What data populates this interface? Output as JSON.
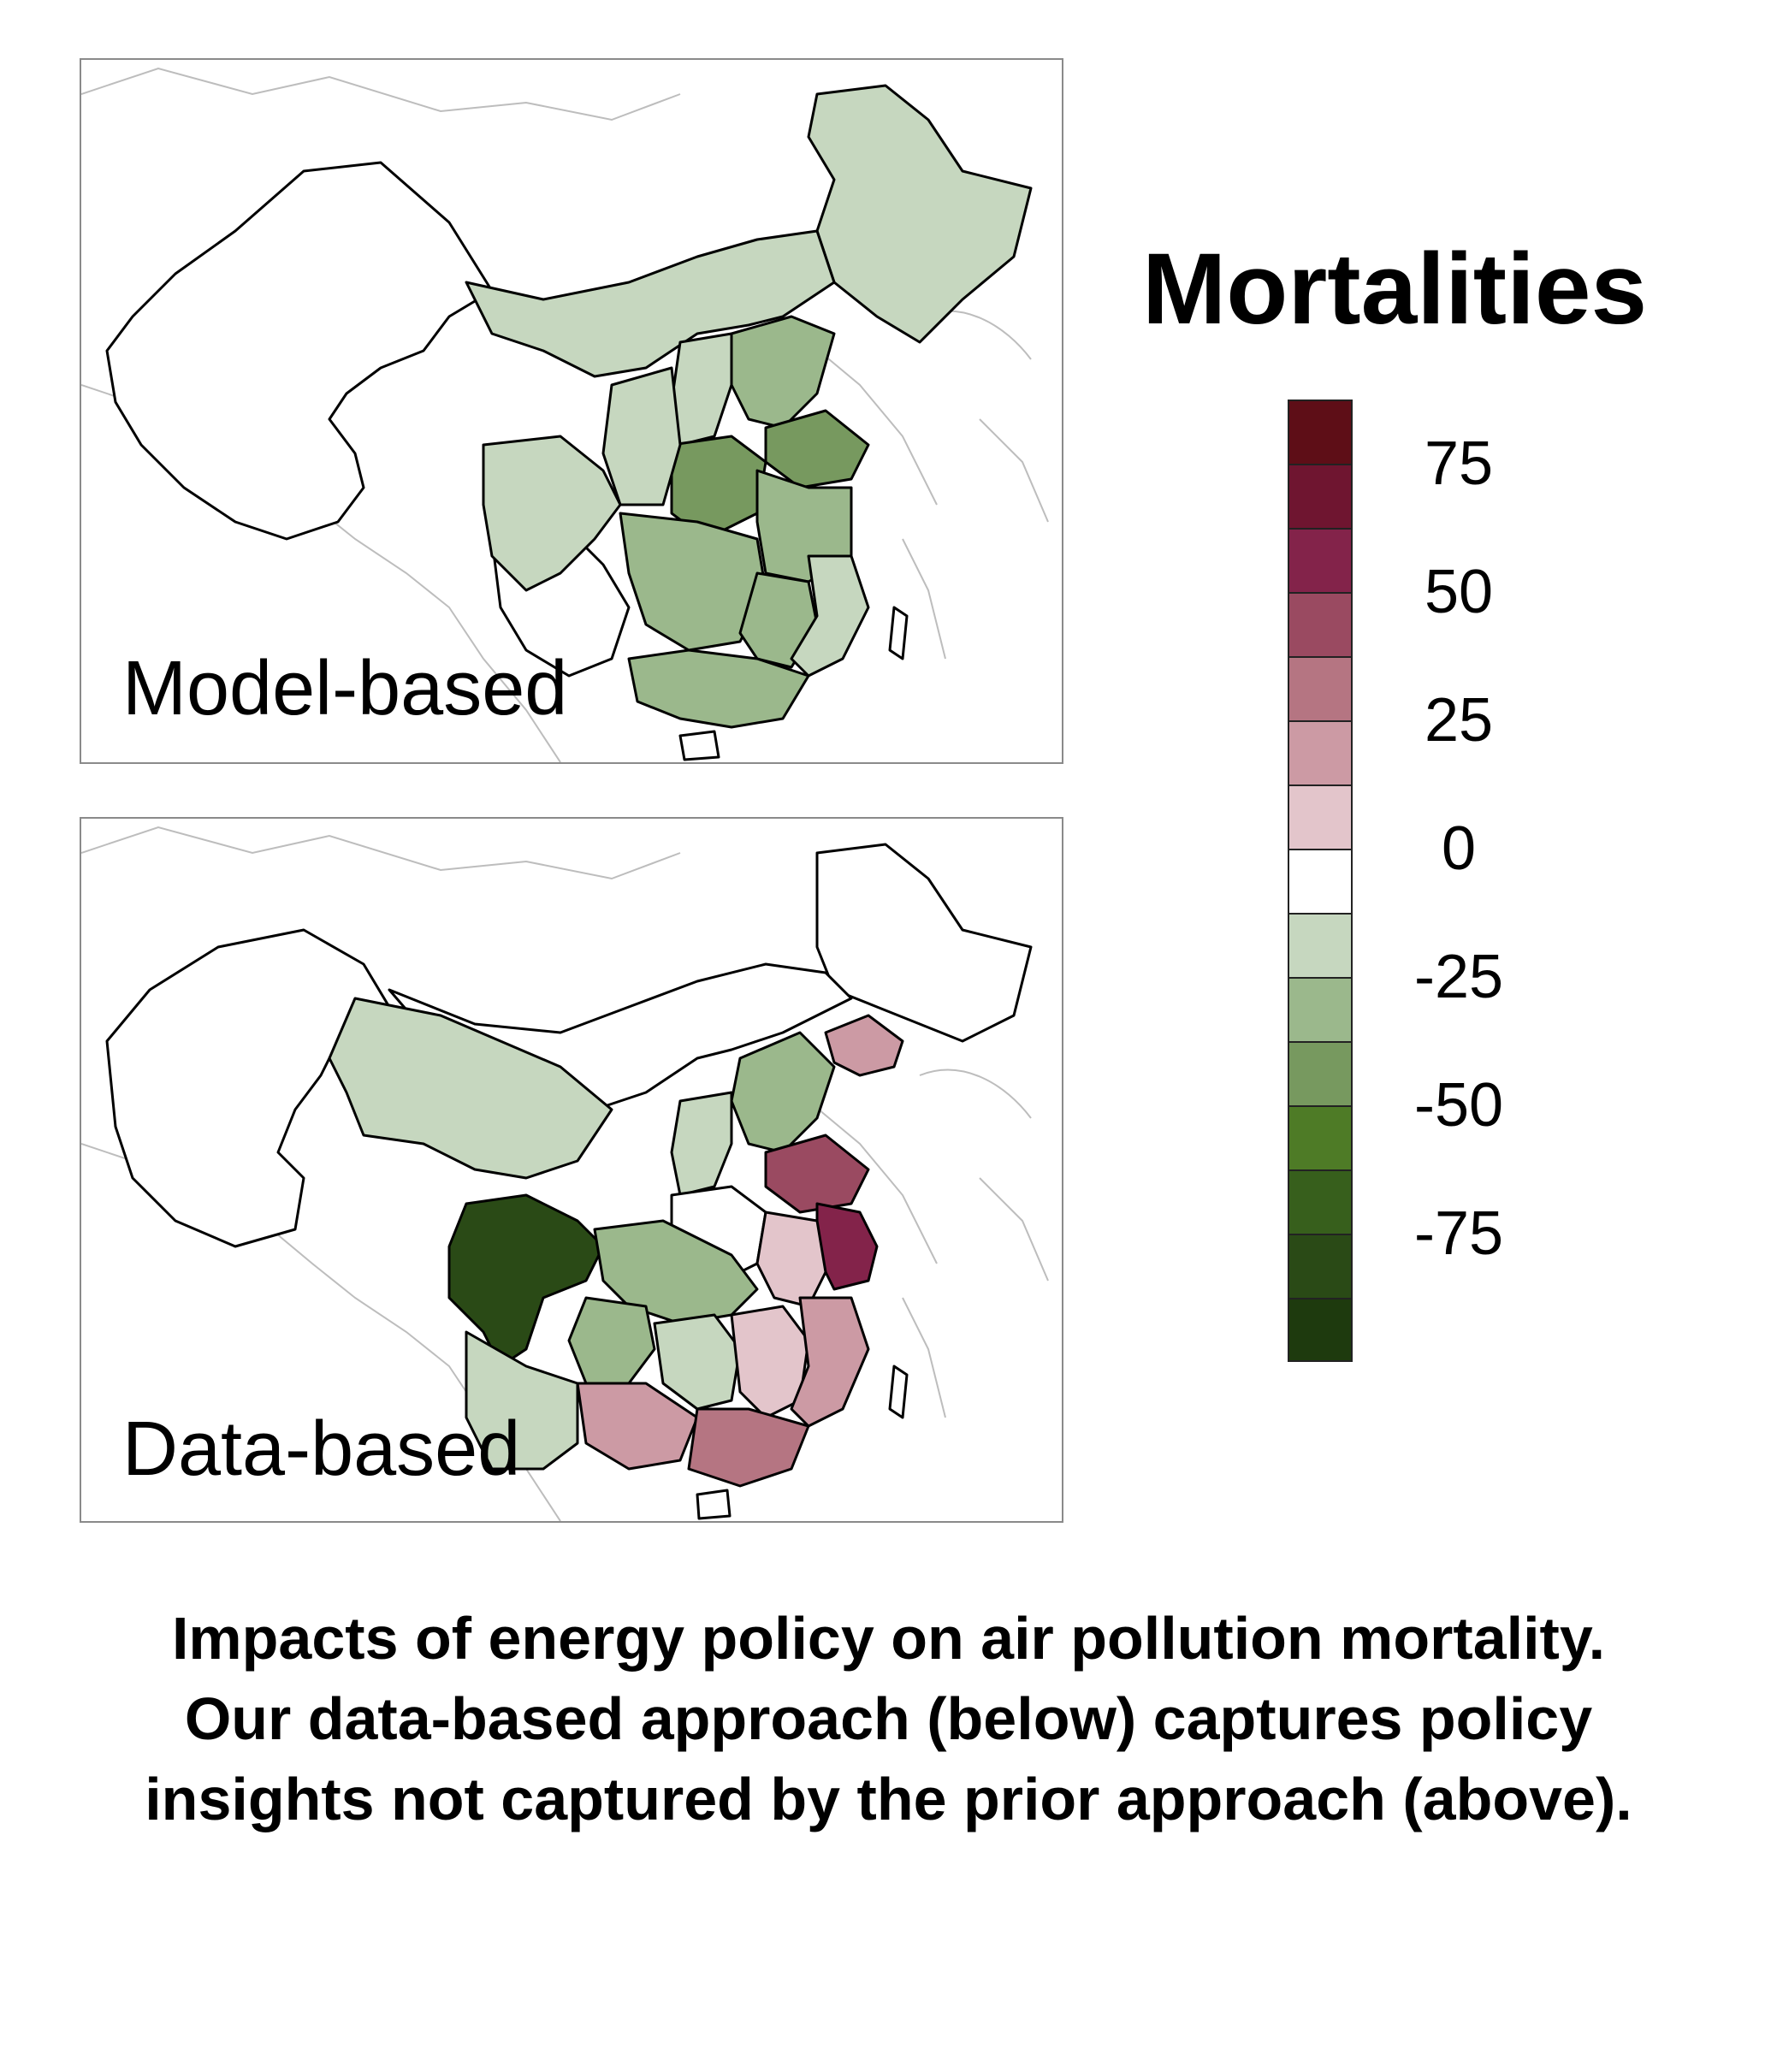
{
  "panels": [
    {
      "label": "Model-based",
      "regions": [
        {
          "name": "heilongjiang-jilin-liaoning",
          "value": -12
        },
        {
          "name": "inner-mongolia",
          "value": -12
        },
        {
          "name": "hebei",
          "value": -25
        },
        {
          "name": "shanxi",
          "value": -12
        },
        {
          "name": "shandong",
          "value": -37
        },
        {
          "name": "henan",
          "value": -37
        },
        {
          "name": "jiangsu-anhui",
          "value": -25
        },
        {
          "name": "shaanxi",
          "value": -12
        },
        {
          "name": "sichuan",
          "value": -12
        },
        {
          "name": "hubei-hunan",
          "value": -25
        },
        {
          "name": "jiangxi",
          "value": -25
        },
        {
          "name": "zhejiang-fujian",
          "value": -12
        },
        {
          "name": "guangdong-guangxi",
          "value": -25
        },
        {
          "name": "yunnan-guizhou",
          "value": 0
        },
        {
          "name": "west-china",
          "value": 0
        }
      ]
    },
    {
      "label": "Data-based",
      "regions": [
        {
          "name": "northeast",
          "value": 0
        },
        {
          "name": "liaoning",
          "value": 30
        },
        {
          "name": "inner-mongolia",
          "value": 0
        },
        {
          "name": "hebei",
          "value": -25
        },
        {
          "name": "shanxi",
          "value": -12
        },
        {
          "name": "shandong",
          "value": 45
        },
        {
          "name": "jiangsu",
          "value": 60
        },
        {
          "name": "henan",
          "value": 0
        },
        {
          "name": "anhui",
          "value": 12
        },
        {
          "name": "qinghai-gansu",
          "value": -12
        },
        {
          "name": "sichuan",
          "value": -75
        },
        {
          "name": "chongqing-hubei",
          "value": -25
        },
        {
          "name": "hunan",
          "value": -12
        },
        {
          "name": "jiangxi",
          "value": 12
        },
        {
          "name": "zhejiang-fujian",
          "value": 25
        },
        {
          "name": "guangdong",
          "value": 37
        },
        {
          "name": "guangxi",
          "value": 25
        },
        {
          "name": "guizhou",
          "value": -25
        },
        {
          "name": "yunnan",
          "value": -12
        },
        {
          "name": "west-china",
          "value": 0
        }
      ]
    }
  ],
  "legend": {
    "title": "Mortalities",
    "colors": [
      "#5e0e17",
      "#6f1530",
      "#83234a",
      "#9a4a61",
      "#b57582",
      "#cc9aa4",
      "#e3c5cb",
      "#ffffff",
      "#c6d7bf",
      "#9bb88c",
      "#77995f",
      "#4e7b26",
      "#375f1c",
      "#2a4a16",
      "#1e3a0e"
    ],
    "ticks": [
      "75",
      "50",
      "25",
      "0",
      "-25",
      "-50",
      "-75"
    ]
  },
  "caption": {
    "lines": [
      "Impacts of energy policy on air pollution mortality.",
      "Our data-based approach (below) captures policy",
      "insights not captured by the prior approach (above)."
    ]
  }
}
